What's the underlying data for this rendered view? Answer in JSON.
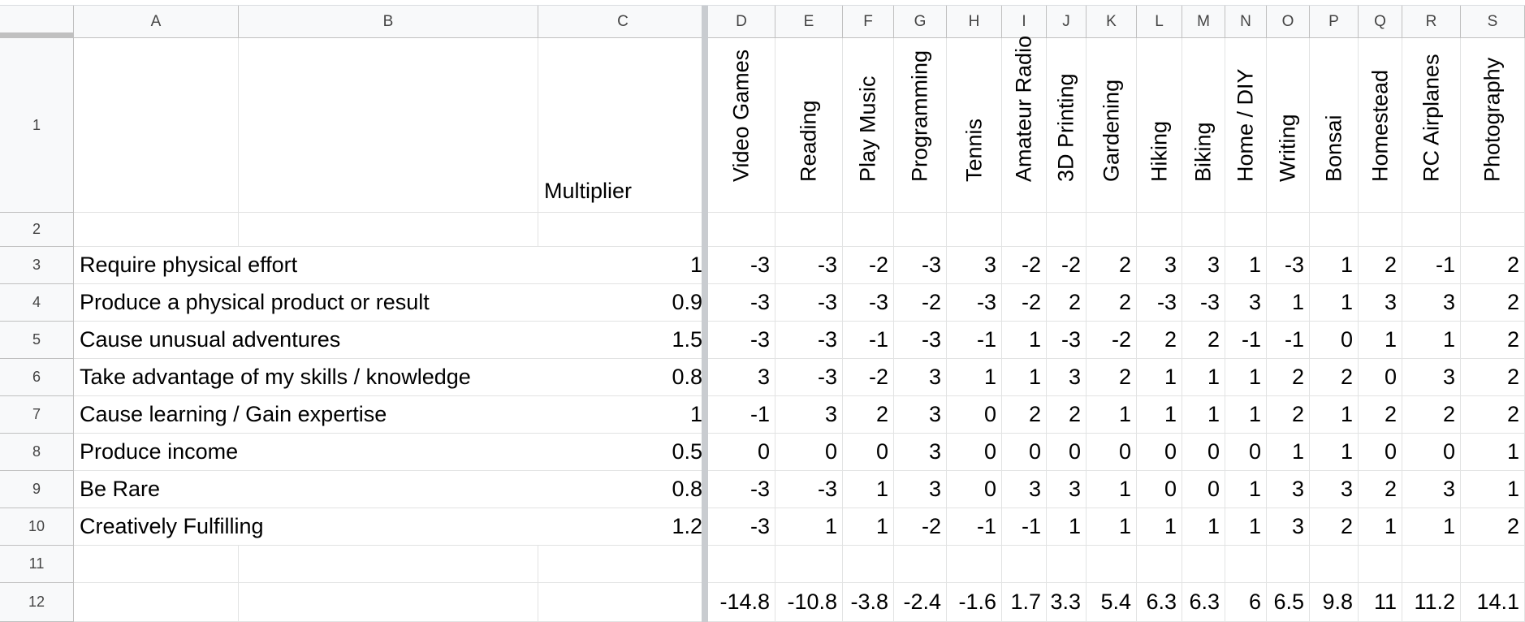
{
  "columns": [
    "A",
    "B",
    "C",
    "D",
    "E",
    "F",
    "G",
    "H",
    "I",
    "J",
    "K",
    "L",
    "M",
    "N",
    "O",
    "P",
    "Q",
    "R",
    "S"
  ],
  "rows": [
    "1",
    "2",
    "3",
    "4",
    "5",
    "6",
    "7",
    "8",
    "9",
    "10",
    "11",
    "12"
  ],
  "multiplier_header": "Multiplier",
  "hobbies": [
    "Video Games",
    "Reading",
    "Play Music",
    "Programming",
    "Tennis",
    "Amateur Radio",
    "3D Printing",
    "Gardening",
    "Hiking",
    "Biking",
    "Home / DIY",
    "Writing",
    "Bonsai",
    "Homestead",
    "RC Airplanes",
    "Photography"
  ],
  "criteria": [
    {
      "label": "Require physical effort",
      "multiplier": "1",
      "scores": [
        "-3",
        "-3",
        "-2",
        "-3",
        "3",
        "-2",
        "-2",
        "2",
        "3",
        "3",
        "1",
        "-3",
        "1",
        "2",
        "-1",
        "2"
      ]
    },
    {
      "label": "Produce a physical product or result",
      "multiplier": "0.9",
      "scores": [
        "-3",
        "-3",
        "-3",
        "-2",
        "-3",
        "-2",
        "2",
        "2",
        "-3",
        "-3",
        "3",
        "1",
        "1",
        "3",
        "3",
        "2"
      ]
    },
    {
      "label": "Cause unusual adventures",
      "multiplier": "1.5",
      "scores": [
        "-3",
        "-3",
        "-1",
        "-3",
        "-1",
        "1",
        "-3",
        "-2",
        "2",
        "2",
        "-1",
        "-1",
        "0",
        "1",
        "1",
        "2"
      ]
    },
    {
      "label": "Take advantage of my skills / knowledge",
      "multiplier": "0.8",
      "scores": [
        "3",
        "-3",
        "-2",
        "3",
        "1",
        "1",
        "3",
        "2",
        "1",
        "1",
        "1",
        "2",
        "2",
        "0",
        "3",
        "2"
      ]
    },
    {
      "label": "Cause learning / Gain expertise",
      "multiplier": "1",
      "scores": [
        "-1",
        "3",
        "2",
        "3",
        "0",
        "2",
        "2",
        "1",
        "1",
        "1",
        "1",
        "2",
        "1",
        "2",
        "2",
        "2"
      ]
    },
    {
      "label": "Produce income",
      "multiplier": "0.5",
      "scores": [
        "0",
        "0",
        "0",
        "3",
        "0",
        "0",
        "0",
        "0",
        "0",
        "0",
        "0",
        "1",
        "1",
        "0",
        "0",
        "1"
      ]
    },
    {
      "label": "Be Rare",
      "multiplier": "0.8",
      "scores": [
        "-3",
        "-3",
        "1",
        "3",
        "0",
        "3",
        "3",
        "1",
        "0",
        "0",
        "1",
        "3",
        "3",
        "2",
        "3",
        "1"
      ]
    },
    {
      "label": "Creatively Fulfilling",
      "multiplier": "1.2",
      "scores": [
        "-3",
        "1",
        "1",
        "-2",
        "-1",
        "-1",
        "1",
        "1",
        "1",
        "1",
        "1",
        "3",
        "2",
        "1",
        "1",
        "2"
      ]
    }
  ],
  "totals": [
    "-14.8",
    "-10.8",
    "-3.8",
    "-2.4",
    "-1.6",
    "1.7",
    "3.3",
    "5.4",
    "6.3",
    "6.3",
    "6",
    "6.5",
    "9.8",
    "11",
    "11.2",
    "14.1"
  ]
}
